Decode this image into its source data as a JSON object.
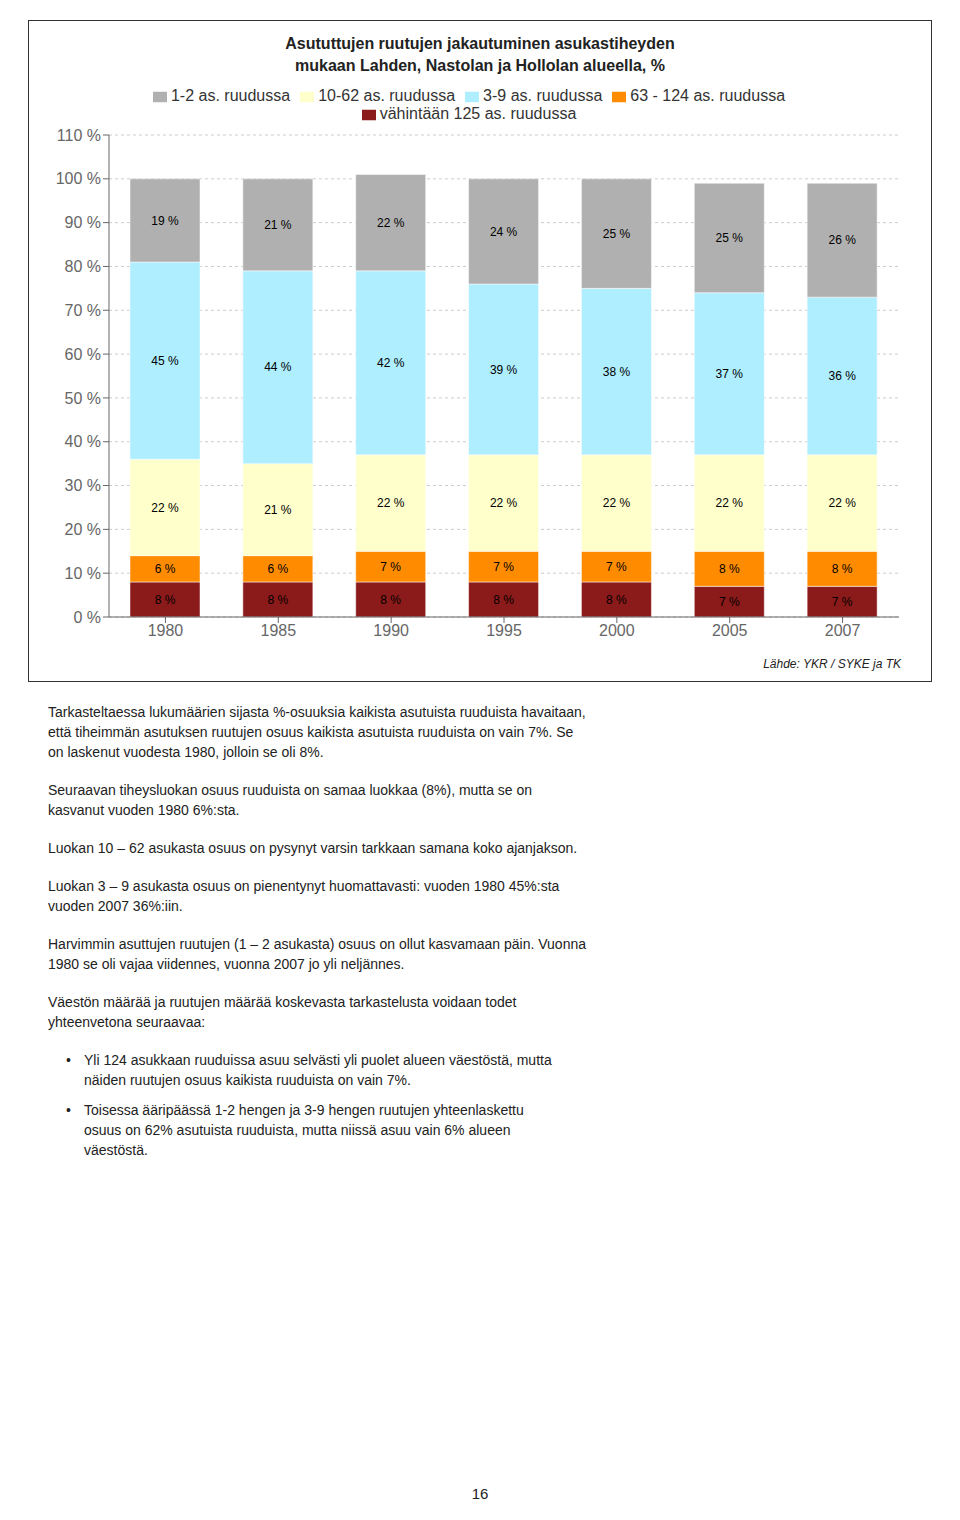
{
  "chart_data": {
    "type": "bar",
    "stacked": true,
    "title": "Asututtujen ruutujen jakautuminen asukastiheyden",
    "subtitle": "mukaan Lahden, Nastolan ja Hollolan alueella, %",
    "categories": [
      "1980",
      "1985",
      "1990",
      "1995",
      "2000",
      "2005",
      "2007"
    ],
    "series": [
      {
        "name": "vähintään 125 as. ruudussa",
        "color": "#8B1A1A",
        "values": [
          8,
          8,
          8,
          8,
          8,
          7,
          7
        ],
        "value_labels": [
          "8 %",
          "8 %",
          "8 %",
          "8 %",
          "8 %",
          "7 %",
          "7 %"
        ]
      },
      {
        "name": "63 - 124 as. ruudussa",
        "color": "#FF8C00",
        "values": [
          6,
          6,
          7,
          7,
          7,
          8,
          8
        ],
        "value_labels": [
          "6 %",
          "6 %",
          "7 %",
          "7 %",
          "7 %",
          "8 %",
          "8 %"
        ]
      },
      {
        "name": "10-62 as. ruudussa",
        "color": "#FFFFCC",
        "values": [
          22,
          21,
          22,
          22,
          22,
          22,
          22
        ],
        "value_labels": [
          "22 %",
          "21 %",
          "22 %",
          "22 %",
          "22 %",
          "22 %",
          "22 %"
        ]
      },
      {
        "name": "3-9 as. ruudussa",
        "color": "#AEEEFF",
        "values": [
          45,
          44,
          42,
          39,
          38,
          37,
          36
        ],
        "value_labels": [
          "45 %",
          "44 %",
          "42 %",
          "39 %",
          "38 %",
          "37 %",
          "36 %"
        ]
      },
      {
        "name": "1-2 as. ruudussa",
        "color": "#B0B0B0",
        "values": [
          19,
          21,
          22,
          24,
          25,
          25,
          26
        ],
        "value_labels": [
          "19 %",
          "21 %",
          "22 %",
          "24 %",
          "25 %",
          "25 %",
          "26 %"
        ]
      }
    ],
    "ylim": [
      0,
      110
    ],
    "yticks": [
      {
        "value": 0,
        "label": "0 %"
      },
      {
        "value": 10,
        "label": "10 %"
      },
      {
        "value": 20,
        "label": "20 %"
      },
      {
        "value": 30,
        "label": "30 %"
      },
      {
        "value": 40,
        "label": "40 %"
      },
      {
        "value": 50,
        "label": "50 %"
      },
      {
        "value": 60,
        "label": "60 %"
      },
      {
        "value": 70,
        "label": "70 %"
      },
      {
        "value": 80,
        "label": "80 %"
      },
      {
        "value": 90,
        "label": "90 %"
      },
      {
        "value": 100,
        "label": "100 %"
      },
      {
        "value": 110,
        "label": "110 %"
      }
    ],
    "grid": true,
    "legend": "top",
    "data_labels": true,
    "annotations": [
      "Lähde: YKR / SYKE ja TK",
      "Tarkasteltaessa lukumäärien sijasta %-osuuksia kaikista asutuista ruuduista havaitaan,\nettä tiheimmän asutuksen ruutujen osuus kaikista asutuista ruuduista on vain 7%. Se\non laskenut vuodesta 1980, jolloin se oli 8%.",
      "Seuraavan tiheysluokan osuus ruuduista on samaa luokkaa (8%), mutta se on\nkasvanut vuoden 1980 6%:sta.",
      "Luokan 10 – 62 asukasta osuus on pysynyt varsin tarkkaan samana koko ajanjakson.",
      "Luokan 3 – 9 asukasta osuus on pienentynyt huomattavasti: vuoden 1980 45%:sta\nvuoden 2007 36%:iin.",
      "Harvimmin asuttujen ruutujen (1 – 2 asukasta) osuus on ollut kasvamaan päin. Vuonna\n1980 se oli vajaa viidennes, vuonna 2007 jo yli neljännes.",
      "Väestön määrää ja ruutujen määrää koskevasta tarkastelusta voidaan todet\nyhteenvetona seuraavaa:",
      "• Yli 124 asukkaan ruuduissa asuu selvästi yli puolet alueen väestöstä, mutta\nnäiden ruutujen osuus kaikista ruuduista on vain 7%.",
      "• Toisessa ääripäässä 1-2 hengen ja 3-9 hengen ruutujen yhteenlaskettu\nosuus on 62% asutuista ruuduista, mutta niissä asuu vain 6% alueen\nväestöstä.",
      "16"
    ]
  }
}
